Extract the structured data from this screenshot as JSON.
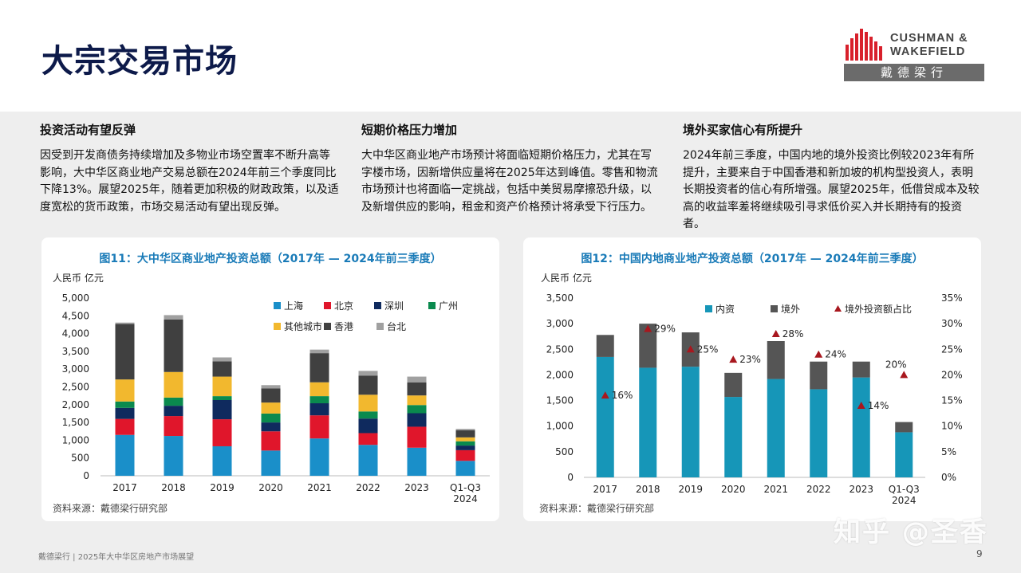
{
  "page_title": "大宗交易市场",
  "logo": {
    "line1": "CUSHMAN &",
    "line2": "WAKEFIELD",
    "cn": "戴德梁行"
  },
  "columns": [
    {
      "heading": "投资活动有望反弹",
      "text": "因受到开发商债务持续增加及多物业市场空置率不断升高等影响，大中华区商业地产交易总额在2024年前三个季度同比下降13%。展望2025年，随着更加积极的财政政策，以及适度宽松的货币政策，市场交易活动有望出现反弹。"
    },
    {
      "heading": "短期价格压力增加",
      "text": "大中华区商业地产市场预计将面临短期价格压力，尤其在写字楼市场，因新增供应量将在2025年达到峰值。零售和物流市场预计也将面临一定挑战，包括中美贸易摩擦恐升级，以及新增供应的影响，租金和资产价格预计将承受下行压力。"
    },
    {
      "heading": "境外买家信心有所提升",
      "text": "2024年前三季度，中国内地的境外投资比例较2023年有所提升，主要来自于中国香港和新加坡的机构型投资人，表明长期投资者的信心有所增强。展望2025年，低借贷成本及较高的收益率差将继续吸引寻求低价买入并长期持有的投资者。"
    }
  ],
  "chart_data": [
    {
      "type": "bar",
      "stacked": true,
      "title": "图11：大中华区商业地产投资总额（2017年 — 2024年前三季度）",
      "ylabel": "人民币 亿元",
      "ylim": [
        0,
        5000
      ],
      "yticks": [
        "5,000",
        "4,500",
        "4,000",
        "3,500",
        "3,000",
        "2,500",
        "2,000",
        "1,500",
        "1,000",
        "500",
        "0"
      ],
      "categories": [
        "2017",
        "2018",
        "2019",
        "2020",
        "2021",
        "2022",
        "2023",
        "Q1-Q3 2024"
      ],
      "category_lines": [
        [
          "2017"
        ],
        [
          "2018"
        ],
        [
          "2019"
        ],
        [
          "2020"
        ],
        [
          "2021"
        ],
        [
          "2022"
        ],
        [
          "2023"
        ],
        [
          "Q1-Q3",
          "2024"
        ]
      ],
      "series": [
        {
          "name": "上海",
          "color": "#1a8fc9",
          "values": [
            1150,
            1120,
            830,
            710,
            1050,
            870,
            790,
            420
          ]
        },
        {
          "name": "北京",
          "color": "#e0162b",
          "values": [
            450,
            560,
            760,
            540,
            650,
            330,
            590,
            300
          ]
        },
        {
          "name": "深圳",
          "color": "#0f2a5e",
          "values": [
            310,
            290,
            540,
            250,
            340,
            410,
            380,
            130
          ]
        },
        {
          "name": "广州",
          "color": "#0a8a4e",
          "values": [
            180,
            230,
            110,
            250,
            200,
            200,
            230,
            120
          ]
        },
        {
          "name": "其他城市",
          "color": "#f2b82e",
          "values": [
            620,
            720,
            550,
            310,
            390,
            470,
            270,
            110
          ]
        },
        {
          "name": "香港",
          "color": "#404040",
          "values": [
            1560,
            1480,
            430,
            400,
            820,
            540,
            370,
            200
          ]
        },
        {
          "name": "台北",
          "color": "#a0a0a0",
          "values": [
            40,
            120,
            110,
            90,
            100,
            130,
            160,
            40
          ]
        }
      ],
      "legend_position": "top-right",
      "source": "资料来源：戴德梁行研究部"
    },
    {
      "type": "bar",
      "stacked": true,
      "title": "图12：中国内地商业地产投资总额（2017年 — 2024年前三季度）",
      "ylabel": "人民币 亿元",
      "ylim": [
        0,
        3500
      ],
      "yticks": [
        "3,500",
        "3,000",
        "2,500",
        "2,000",
        "1,500",
        "1,000",
        "500",
        "0"
      ],
      "y2lim": [
        0,
        35
      ],
      "y2ticks": [
        "35%",
        "30%",
        "25%",
        "20%",
        "15%",
        "10%",
        "5%",
        "0%"
      ],
      "categories": [
        "2017",
        "2018",
        "2019",
        "2020",
        "2021",
        "2022",
        "2023",
        "Q1-Q3 2024"
      ],
      "category_lines": [
        [
          "2017"
        ],
        [
          "2018"
        ],
        [
          "2019"
        ],
        [
          "2020"
        ],
        [
          "2021"
        ],
        [
          "2022"
        ],
        [
          "2023"
        ],
        [
          "Q1-Q3",
          "2024"
        ]
      ],
      "series": [
        {
          "name": "内资",
          "color": "#1696b8",
          "values": [
            2350,
            2140,
            2160,
            1570,
            1920,
            1720,
            1950,
            880
          ]
        },
        {
          "name": "境外",
          "color": "#555555",
          "values": [
            430,
            860,
            670,
            470,
            740,
            540,
            310,
            200
          ]
        }
      ],
      "line_series": {
        "name": "境外投资额占比",
        "color": "#a8171e",
        "axis": "y2",
        "values": [
          16,
          29,
          25,
          23,
          28,
          24,
          14,
          20
        ],
        "labels": [
          "16%",
          "29%",
          "25%",
          "23%",
          "28%",
          "24%",
          "14%",
          "20%"
        ]
      },
      "legend_position": "top-right",
      "source": "资料来源：戴德梁行研究部"
    }
  ],
  "footer": "戴德梁行 | 2025年大中华区房地产市场展望",
  "page_number": "9",
  "watermark": "知乎 @圣香"
}
